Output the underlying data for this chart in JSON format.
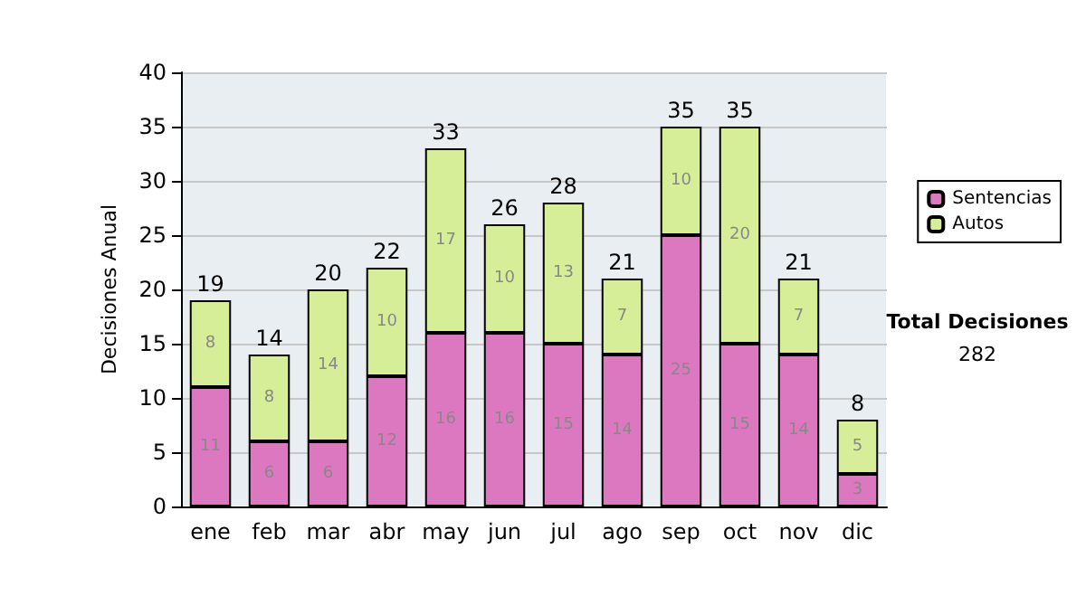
{
  "chart_data": {
    "type": "bar",
    "stacked": true,
    "ylabel": "Decisiones Anual",
    "categories": [
      "ene",
      "feb",
      "mar",
      "abr",
      "may",
      "jun",
      "jul",
      "ago",
      "sep",
      "oct",
      "nov",
      "dic"
    ],
    "series": [
      {
        "name": "Sentencias",
        "color": "#dc78c0",
        "values": [
          11,
          6,
          6,
          12,
          16,
          16,
          15,
          14,
          25,
          15,
          14,
          3
        ]
      },
      {
        "name": "Autos",
        "color": "#d6ee98",
        "values": [
          8,
          8,
          14,
          10,
          17,
          10,
          13,
          7,
          10,
          20,
          7,
          5
        ]
      }
    ],
    "totals": [
      "19",
      "14",
      "20",
      "22",
      "33",
      "26",
      "28",
      "21",
      "35",
      "35",
      "21",
      "8"
    ],
    "data_labels": true,
    "ylim": [
      0,
      40
    ],
    "yticks": [
      0,
      5,
      10,
      15,
      20,
      25,
      30,
      35,
      40
    ],
    "grid": "y",
    "legend": "right",
    "annotations": [
      "Total Decisiones",
      "282"
    ]
  }
}
